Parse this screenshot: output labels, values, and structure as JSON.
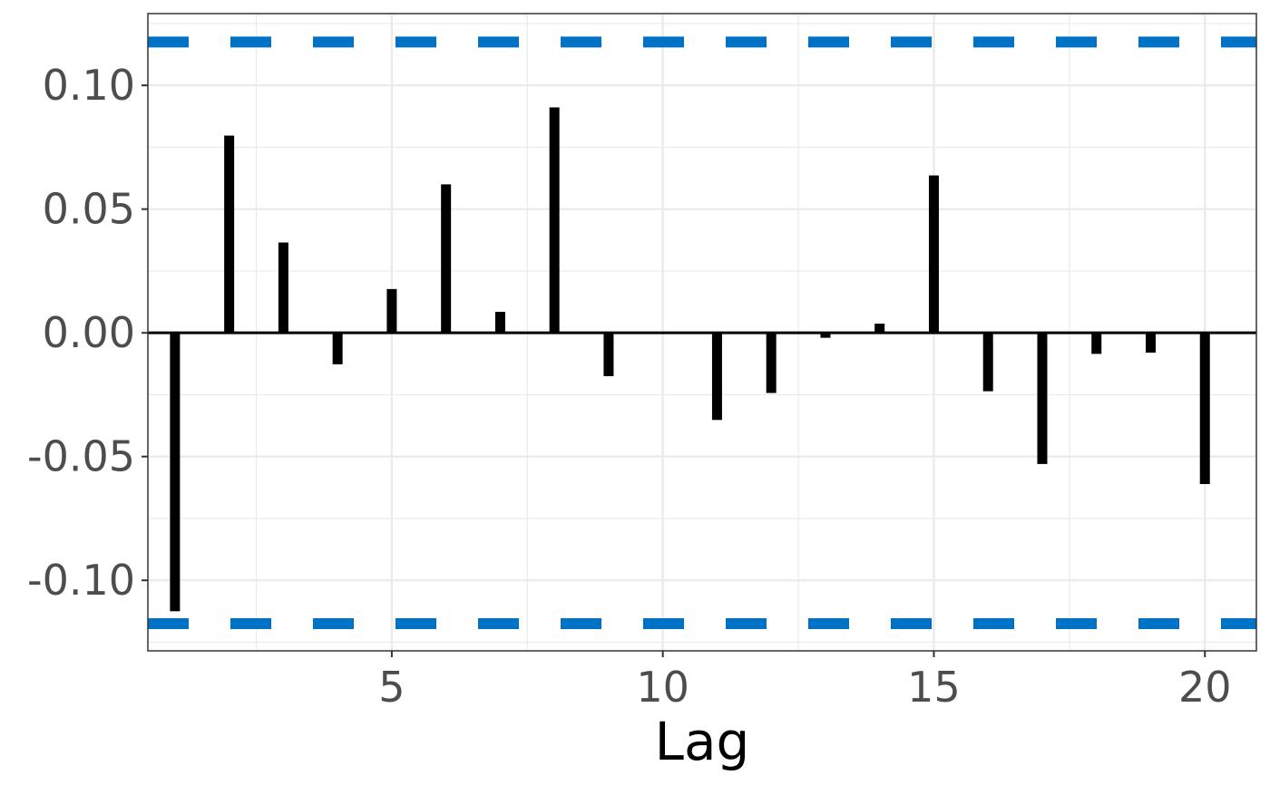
{
  "chart_data": {
    "type": "bar",
    "xlabel": "Lag",
    "ylabel": "",
    "xlim": [
      0.5,
      20.95
    ],
    "ylim": [
      -0.1285,
      0.129
    ],
    "x_ticks": [
      5,
      10,
      15,
      20
    ],
    "x_tick_labels": [
      "5",
      "10",
      "15",
      "20"
    ],
    "y_ticks": [
      -0.1,
      -0.05,
      0.0,
      0.05,
      0.1
    ],
    "y_tick_labels": [
      "-0.10",
      "-0.05",
      "0.00",
      "0.05",
      "0.10"
    ],
    "grid": true,
    "x": [
      1,
      2,
      3,
      4,
      5,
      6,
      7,
      8,
      9,
      10,
      11,
      12,
      13,
      14,
      15,
      16,
      17,
      18,
      19,
      20
    ],
    "values": [
      -0.1125,
      0.0797,
      0.0365,
      -0.0127,
      0.0177,
      0.06,
      0.0085,
      0.0911,
      -0.0175,
      0.0,
      -0.0352,
      -0.0243,
      -0.002,
      0.0037,
      0.0636,
      -0.0236,
      -0.053,
      -0.0085,
      -0.008,
      -0.0611
    ],
    "confidence_bound": 0.1175,
    "colors": {
      "bars": "#000000",
      "bounds": "#0072c6",
      "zero_line": "#000000",
      "grid": "#ebebeb",
      "panel_border": "#333333"
    }
  }
}
